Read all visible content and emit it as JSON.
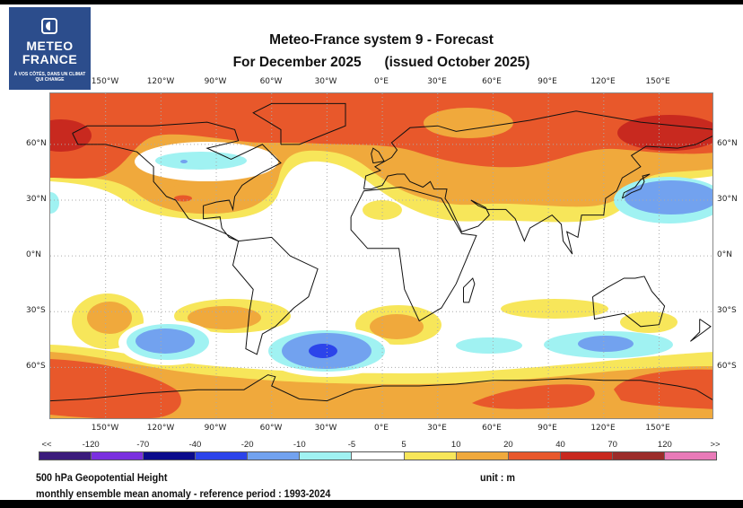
{
  "logo": {
    "line1": "METEO",
    "line2": "FRANCE",
    "tagline": "À VOS CÔTÉS, DANS UN CLIMAT QUI CHANGE"
  },
  "title": {
    "line1": "Meteo-France system 9  -  Forecast",
    "line2": "For December 2025      (issued October 2025)"
  },
  "lon_labels": [
    "150°W",
    "120°W",
    "90°W",
    "60°W",
    "30°W",
    "0°E",
    "30°E",
    "60°E",
    "90°E",
    "120°E",
    "150°E"
  ],
  "lat_labels": [
    "60°N",
    "30°N",
    "0°N",
    "30°S",
    "60°S"
  ],
  "colorbar": {
    "labels": [
      "<<",
      "-120",
      "-70",
      "-40",
      "-20",
      "-10",
      "-5",
      "5",
      "10",
      "20",
      "40",
      "70",
      "120",
      ">>"
    ],
    "colors": [
      "#3b1b7c",
      "#7a30df",
      "#0b0b8c",
      "#2c44ea",
      "#72a2ef",
      "#a0f2f2",
      "#ffffff",
      "#f7e65a",
      "#f0a93c",
      "#e8582b",
      "#c8291f",
      "#9c2c2a",
      "#e97ab8"
    ]
  },
  "footer": {
    "variable": "500 hPa Geopotential Height",
    "unit": "unit : m",
    "description": "monthly ensemble mean anomaly - reference period : 1993-2024"
  }
}
